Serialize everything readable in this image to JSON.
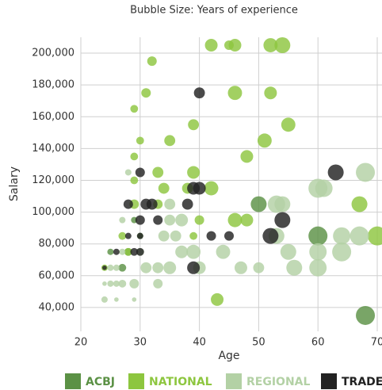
{
  "chart_data": {
    "type": "scatter",
    "subtitle": "Bubble Size: Years of experience",
    "xlabel": "Age",
    "ylabel": "Salary",
    "xlim": [
      20,
      70
    ],
    "xticks": [
      20,
      30,
      40,
      50,
      60,
      70
    ],
    "ylim": [
      25000,
      210000
    ],
    "yticks": [
      {
        "value": 40000,
        "label": "40,000"
      },
      {
        "value": 60000,
        "label": "60,000"
      },
      {
        "value": 80000,
        "label": "80,000"
      },
      {
        "value": 100000,
        "label": "100,000"
      },
      {
        "value": 120000,
        "label": "120,000"
      },
      {
        "value": 140000,
        "label": "140,000"
      },
      {
        "value": 160000,
        "label": "160,000"
      },
      {
        "value": 180000,
        "label": "180,000"
      },
      {
        "value": 200000,
        "label": "200,000"
      }
    ],
    "grid": true,
    "legend": "bottom",
    "series": [
      {
        "name": "ACBJ",
        "color": "#5b9145",
        "x": [
          50,
          60,
          68,
          28,
          27,
          25,
          30,
          29
        ],
        "y": [
          105000,
          85000,
          35000,
          75000,
          65000,
          75000,
          85000,
          95000
        ],
        "size": [
          25,
          36,
          36,
          6,
          6,
          4,
          4,
          4
        ]
      },
      {
        "name": "NATIONAL",
        "color": "#8dc63f",
        "x": [
          42,
          45,
          46,
          52,
          54,
          32,
          31,
          46,
          52,
          29,
          39,
          55,
          30,
          35,
          51,
          48,
          29,
          33,
          39,
          29,
          34,
          38,
          42,
          29,
          33,
          40,
          46,
          48,
          67,
          70,
          27,
          39,
          43,
          24,
          28
        ],
        "y": [
          205000,
          205000,
          205000,
          205000,
          205000,
          195000,
          175000,
          175000,
          175000,
          165000,
          155000,
          155000,
          145000,
          145000,
          145000,
          135000,
          135000,
          125000,
          125000,
          120000,
          115000,
          115000,
          115000,
          105000,
          105000,
          95000,
          95000,
          95000,
          105000,
          85000,
          85000,
          85000,
          45000,
          65000,
          75000
        ],
        "size": [
          16,
          9,
          16,
          20,
          25,
          9,
          9,
          20,
          16,
          6,
          12,
          20,
          6,
          12,
          20,
          16,
          6,
          12,
          16,
          6,
          12,
          12,
          20,
          9,
          9,
          9,
          20,
          16,
          25,
          36,
          6,
          6,
          16,
          4,
          6
        ]
      },
      {
        "name": "REGIONAL",
        "color": "#b3d1a5",
        "x": [
          68,
          60,
          61,
          54,
          53,
          64,
          67,
          60,
          64,
          55,
          60,
          56,
          50,
          47,
          44,
          39,
          37,
          40,
          36,
          34,
          37,
          35,
          35,
          35,
          33,
          31,
          33,
          29,
          27,
          26,
          25,
          24,
          25,
          26,
          27,
          30,
          28,
          27,
          24,
          26,
          29,
          53
        ],
        "y": [
          125000,
          115000,
          115000,
          105000,
          105000,
          85000,
          85000,
          75000,
          75000,
          75000,
          65000,
          65000,
          65000,
          65000,
          75000,
          75000,
          75000,
          65000,
          85000,
          85000,
          95000,
          95000,
          105000,
          65000,
          65000,
          65000,
          55000,
          55000,
          55000,
          55000,
          55000,
          55000,
          65000,
          65000,
          75000,
          75000,
          125000,
          95000,
          45000,
          45000,
          45000,
          85000
        ],
        "size": [
          36,
          36,
          30,
          25,
          30,
          30,
          36,
          30,
          36,
          25,
          30,
          25,
          12,
          16,
          20,
          20,
          16,
          16,
          12,
          12,
          16,
          12,
          12,
          16,
          12,
          12,
          9,
          9,
          6,
          4,
          4,
          2,
          4,
          4,
          4,
          6,
          4,
          4,
          4,
          2,
          2,
          25
        ]
      },
      {
        "name": "TRADE",
        "color": "#222222",
        "x": [
          40,
          30,
          63,
          39,
          40,
          28,
          31,
          32,
          38,
          30,
          33,
          54,
          52,
          42,
          45,
          30,
          28,
          26,
          30,
          29,
          39,
          24
        ],
        "y": [
          175000,
          125000,
          125000,
          115000,
          115000,
          105000,
          105000,
          105000,
          105000,
          95000,
          95000,
          95000,
          85000,
          85000,
          85000,
          85000,
          85000,
          75000,
          75000,
          75000,
          65000,
          65000
        ],
        "size": [
          12,
          9,
          25,
          16,
          16,
          9,
          12,
          12,
          12,
          9,
          9,
          25,
          25,
          9,
          9,
          4,
          4,
          4,
          6,
          6,
          16,
          2
        ]
      }
    ]
  }
}
